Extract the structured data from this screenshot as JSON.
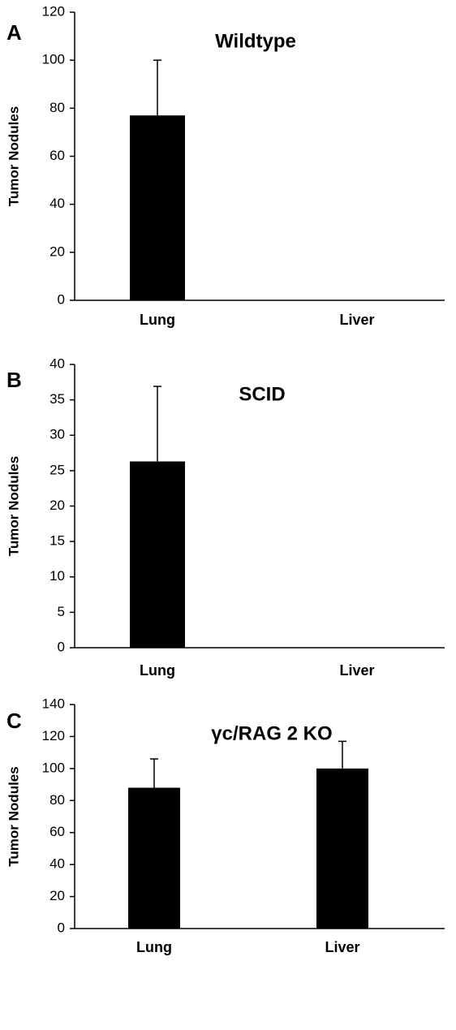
{
  "chart_data": [
    {
      "type": "bar",
      "panel": "A",
      "title": "Wildtype",
      "ylabel": "Tumor Nodules",
      "categories": [
        "Lung",
        "Liver"
      ],
      "values": [
        77,
        0
      ],
      "errors": [
        23,
        null
      ],
      "color": "#000000",
      "ylim": [
        0,
        120
      ],
      "yticks": [
        0,
        20,
        40,
        60,
        80,
        100,
        120
      ]
    },
    {
      "type": "bar",
      "panel": "B",
      "title": "SCID",
      "ylabel": "Tumor Nodules",
      "categories": [
        "Lung",
        "Liver"
      ],
      "values": [
        26.3,
        0
      ],
      "errors": [
        10.6,
        null
      ],
      "color": "#000000",
      "ylim": [
        0,
        40
      ],
      "yticks": [
        0,
        5,
        10,
        15,
        20,
        25,
        30,
        35,
        40
      ]
    },
    {
      "type": "bar",
      "panel": "C",
      "title": "γc/RAG 2 KO",
      "ylabel": "Tumor Nodules",
      "categories": [
        "Lung",
        "Liver"
      ],
      "values": [
        88,
        100
      ],
      "errors": [
        18,
        17
      ],
      "color": "#000000",
      "ylim": [
        0,
        140
      ],
      "yticks": [
        0,
        20,
        40,
        60,
        80,
        100,
        120,
        140
      ]
    }
  ]
}
